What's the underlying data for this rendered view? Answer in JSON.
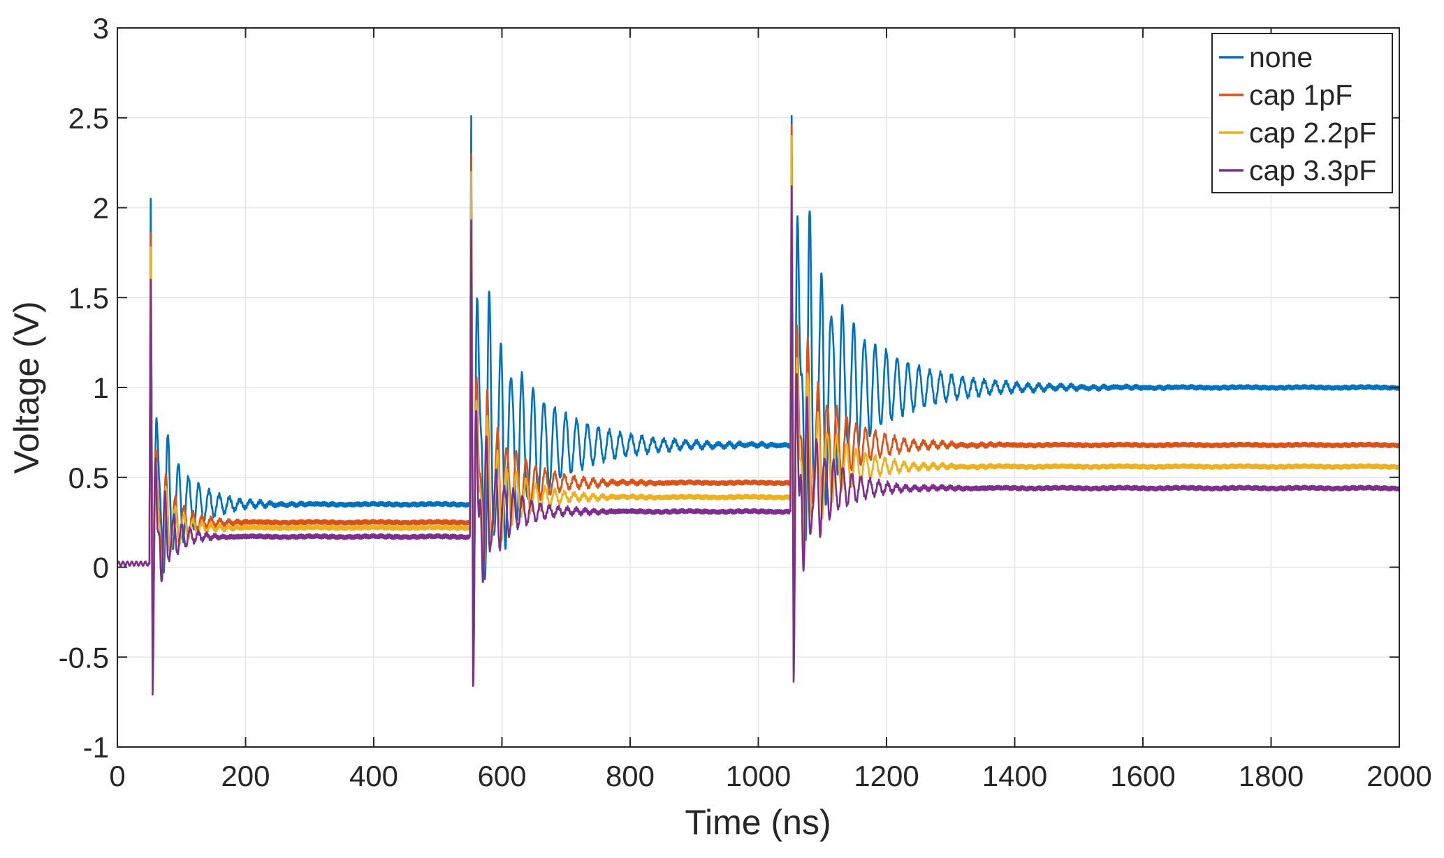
{
  "chart_data": {
    "type": "line",
    "title": "",
    "xlabel": "Time (ns)",
    "ylabel": "Voltage (V)",
    "xlim": [
      0,
      2000
    ],
    "ylim": [
      -1,
      3
    ],
    "x_ticks": [
      0,
      200,
      400,
      600,
      800,
      1000,
      1200,
      1400,
      1600,
      1800,
      2000
    ],
    "x_tick_labels": [
      "0",
      "200",
      "400",
      "600",
      "800",
      "1000",
      "1200",
      "1400",
      "1600",
      "1800",
      "2000"
    ],
    "y_ticks": [
      -1,
      -0.5,
      0,
      0.5,
      1,
      1.5,
      2,
      2.5,
      3
    ],
    "y_tick_labels": [
      "-1",
      "-0.5",
      "0",
      "0.5",
      "1",
      "1.5",
      "2",
      "2.5",
      "3"
    ],
    "grid": true,
    "legend_position": "top-right",
    "series": [
      {
        "name": "none",
        "color": "#0072BD",
        "events": [
          {
            "t": 50,
            "from": 0.02,
            "to": 0.35,
            "peak": 2.05,
            "dip": -0.15,
            "decay": 45,
            "period": 16,
            "osc": 0.55
          },
          {
            "t": 550,
            "from": 0.35,
            "to": 0.68,
            "peak": 2.51,
            "dip": -0.15,
            "decay": 90,
            "period": 17,
            "osc": 0.85
          },
          {
            "t": 1050,
            "from": 0.68,
            "to": 1.0,
            "peak": 2.51,
            "dip": -0.1,
            "decay": 95,
            "period": 17,
            "osc": 0.9
          }
        ]
      },
      {
        "name": "cap 1pF",
        "color": "#D95319",
        "events": [
          {
            "t": 50,
            "from": 0.02,
            "to": 0.25,
            "peak": 1.86,
            "dip": -0.3,
            "decay": 30,
            "period": 14,
            "osc": 0.45
          },
          {
            "t": 550,
            "from": 0.25,
            "to": 0.47,
            "peak": 2.3,
            "dip": -0.3,
            "decay": 55,
            "period": 15,
            "osc": 0.55
          },
          {
            "t": 1050,
            "from": 0.47,
            "to": 0.68,
            "peak": 2.46,
            "dip": -0.2,
            "decay": 60,
            "period": 15,
            "osc": 0.6
          }
        ]
      },
      {
        "name": "cap 2.2pF",
        "color": "#EDB120",
        "events": [
          {
            "t": 50,
            "from": 0.02,
            "to": 0.22,
            "peak": 1.78,
            "dip": -0.35,
            "decay": 28,
            "period": 14,
            "osc": 0.4
          },
          {
            "t": 550,
            "from": 0.22,
            "to": 0.39,
            "peak": 2.2,
            "dip": -0.35,
            "decay": 50,
            "period": 15,
            "osc": 0.5
          },
          {
            "t": 1050,
            "from": 0.39,
            "to": 0.56,
            "peak": 2.4,
            "dip": -0.25,
            "decay": 55,
            "period": 15,
            "osc": 0.55
          }
        ]
      },
      {
        "name": "cap 3.3pF",
        "color": "#7E2F8E",
        "events": [
          {
            "t": 50,
            "from": 0.02,
            "to": 0.17,
            "peak": 1.6,
            "dip": -0.63,
            "decay": 26,
            "period": 13,
            "osc": 0.4
          },
          {
            "t": 550,
            "from": 0.17,
            "to": 0.31,
            "peak": 1.93,
            "dip": -0.57,
            "decay": 45,
            "period": 14,
            "osc": 0.45
          },
          {
            "t": 1050,
            "from": 0.31,
            "to": 0.44,
            "peak": 2.12,
            "dip": -0.53,
            "decay": 50,
            "period": 14,
            "osc": 0.5
          }
        ]
      }
    ]
  }
}
